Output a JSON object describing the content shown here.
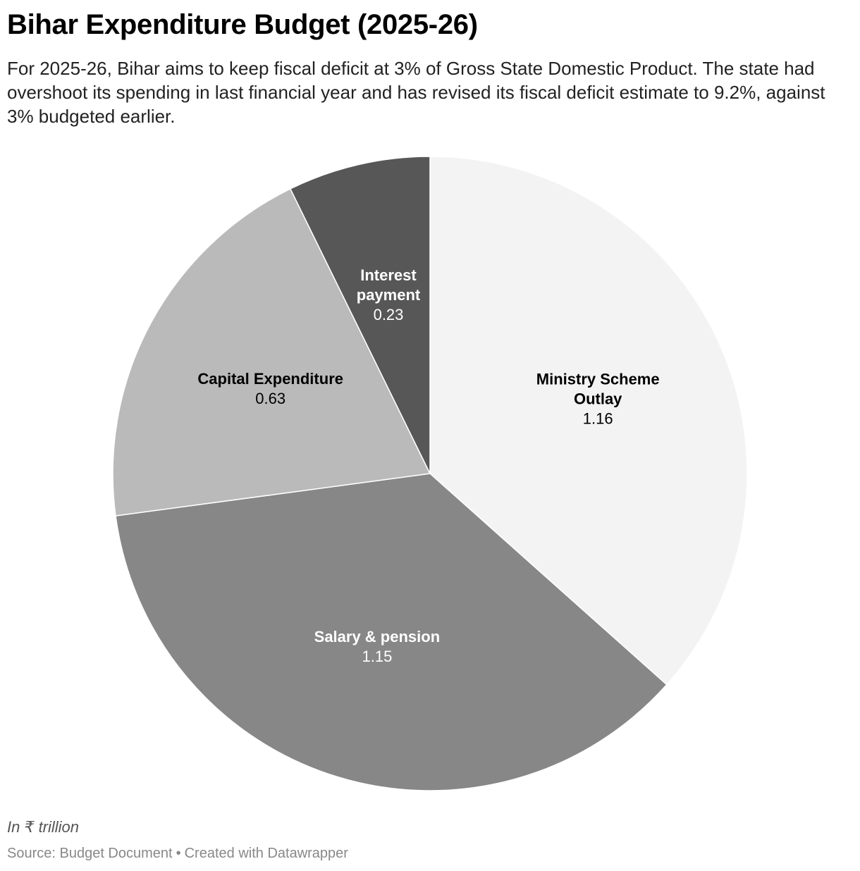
{
  "header": {
    "title": "Bihar Expenditure Budget (2025-26)",
    "subtitle": "For 2025-26, Bihar aims to keep fiscal deficit at 3% of Gross State Domestic Product. The state had overshoot its spending in last financial year and has revised its fiscal deficit estimate to 9.2%, against 3% budgeted earlier."
  },
  "chart_data": {
    "type": "pie",
    "title": "Bihar Expenditure Budget (2025-26)",
    "unit": "₹ trillion",
    "start": "12 o'clock, clockwise",
    "slices": [
      {
        "label_lines": [
          "Ministry Scheme",
          "Outlay"
        ],
        "value": 1.16,
        "value_label": "1.16",
        "color": "#f3f3f3",
        "text_color": "#000000"
      },
      {
        "label_lines": [
          "Salary & pension"
        ],
        "value": 1.15,
        "value_label": "1.15",
        "color": "#878787",
        "text_color": "#ffffff"
      },
      {
        "label_lines": [
          "Capital Expenditure"
        ],
        "value": 0.63,
        "value_label": "0.63",
        "color": "#bababa",
        "text_color": "#000000"
      },
      {
        "label_lines": [
          "Interest",
          "payment"
        ],
        "value": 0.23,
        "value_label": "0.23",
        "color": "#575757",
        "text_color": "#ffffff"
      }
    ]
  },
  "footer": {
    "note": "In ₹ trillion",
    "source": "Source: Budget Document",
    "separator": "•",
    "credit": "Created with Datawrapper"
  }
}
